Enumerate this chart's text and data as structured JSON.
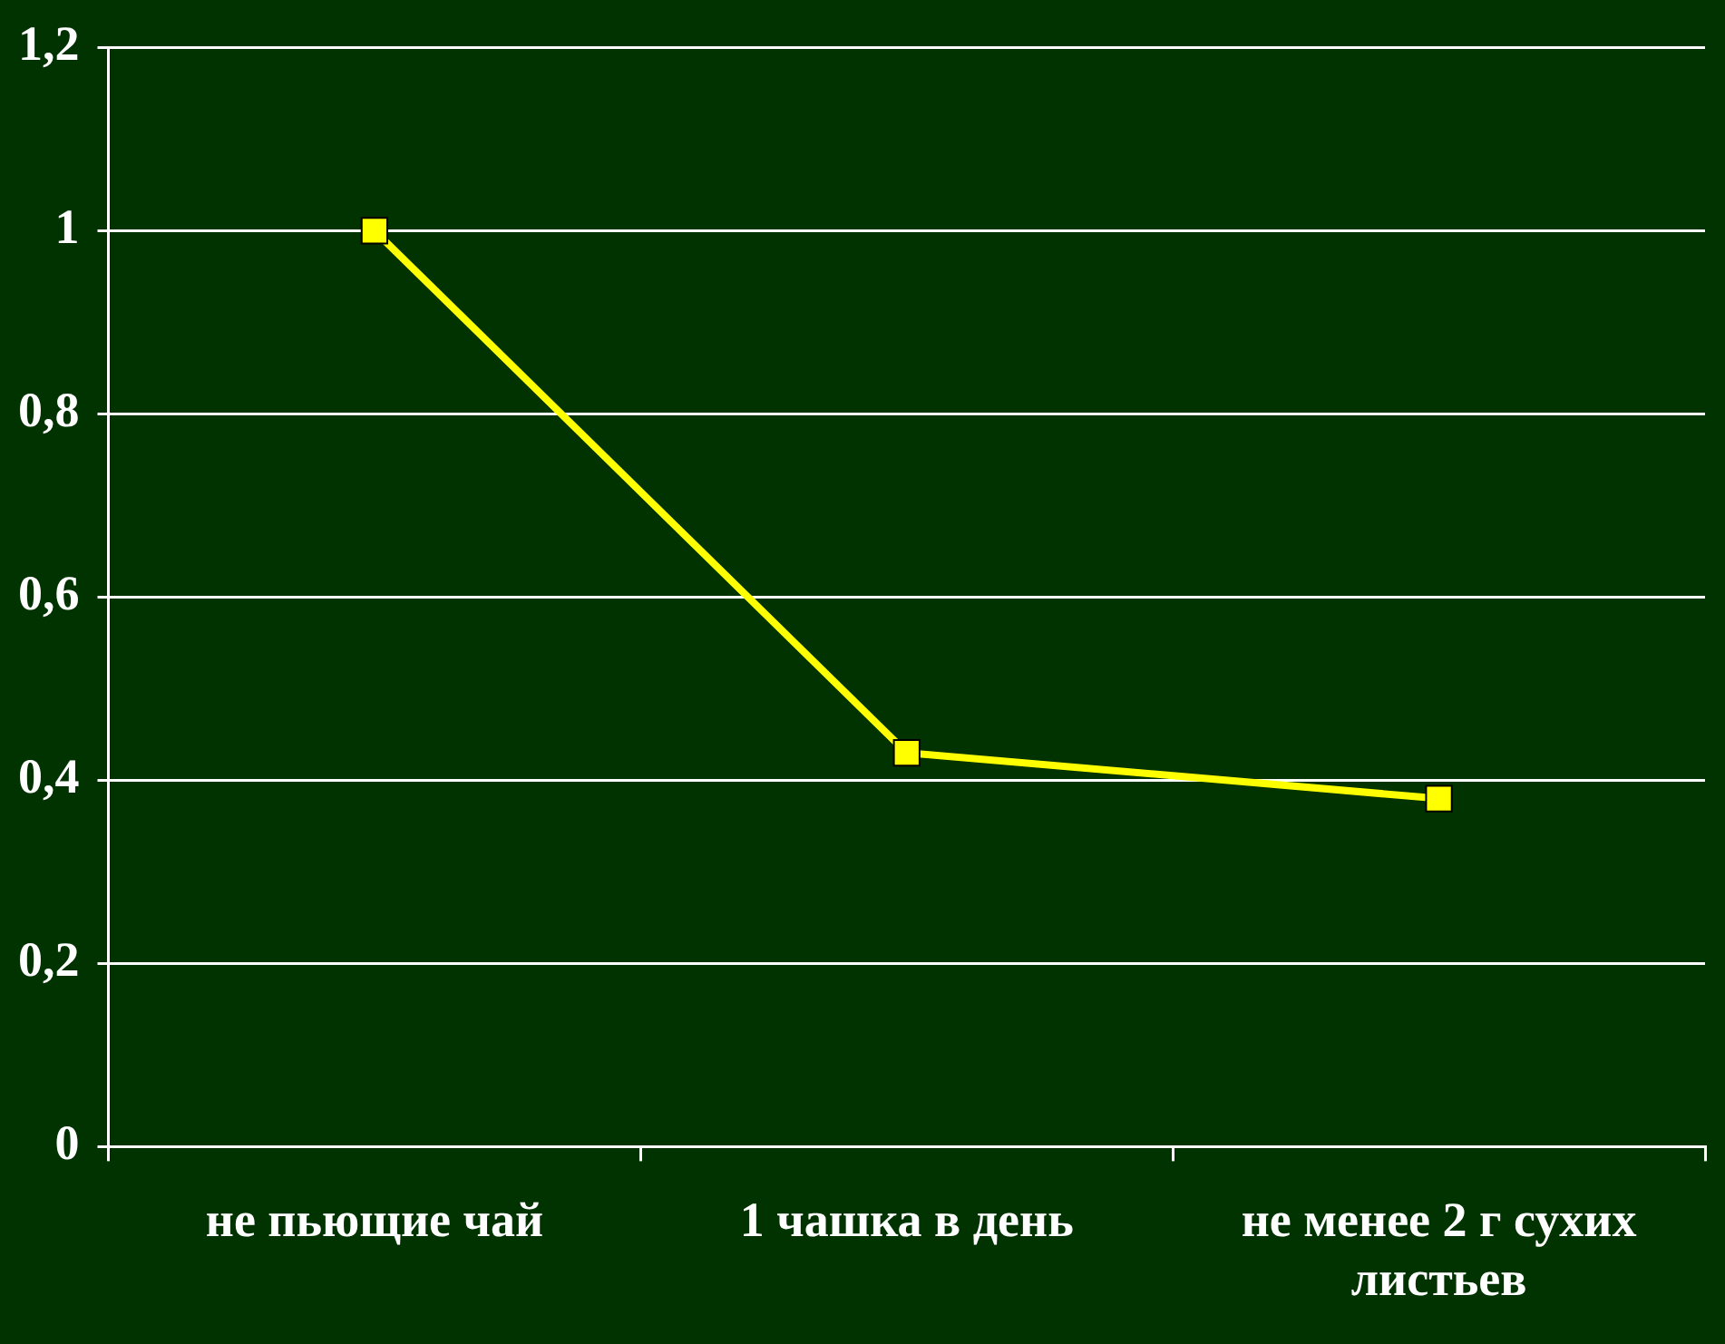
{
  "chart_data": {
    "type": "line",
    "categories": [
      "не пьющие чай",
      "1 чашка в день",
      "не менее 2 г сухих листьев"
    ],
    "series": [
      {
        "color": "#ffff00",
        "values": [
          1,
          0.43,
          0.38
        ]
      }
    ],
    "ylim": [
      0,
      1.2
    ],
    "yticks": [
      {
        "value": 0,
        "label": "0"
      },
      {
        "value": 0.2,
        "label": "0,2"
      },
      {
        "value": 0.4,
        "label": "0,4"
      },
      {
        "value": 0.6,
        "label": "0,6"
      },
      {
        "value": 0.8,
        "label": "0,8"
      },
      {
        "value": 1,
        "label": "1"
      },
      {
        "value": 1.2,
        "label": "1,2"
      }
    ],
    "grid": "y",
    "legend": false,
    "marker": "square",
    "line_style": "solid"
  }
}
